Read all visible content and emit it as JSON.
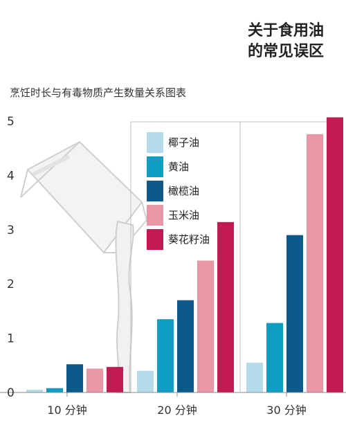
{
  "headline": {
    "line1": "关于食用油",
    "line2": "的常见误区"
  },
  "chart_data": {
    "type": "bar",
    "title": "烹饪时长与有毒物质产生数量关系图表",
    "categories": [
      "10 分钟",
      "20 分钟",
      "30 分钟"
    ],
    "yticks": [
      "0",
      "1",
      "2",
      "3",
      "4",
      "5"
    ],
    "ylim": [
      0,
      5.1
    ],
    "legend_position": "top-center",
    "series": [
      {
        "name": "椰子油",
        "color": "#b5dbea",
        "values": [
          0.05,
          0.4,
          0.55
        ]
      },
      {
        "name": "黄油",
        "color": "#0f9ec2",
        "values": [
          0.08,
          1.35,
          1.28
        ]
      },
      {
        "name": "橄榄油",
        "color": "#0d5a8a",
        "values": [
          0.52,
          1.7,
          2.9
        ]
      },
      {
        "name": "玉米油",
        "color": "#e898a4",
        "values": [
          0.44,
          2.43,
          4.76
        ]
      },
      {
        "name": "葵花籽油",
        "color": "#c21b51",
        "values": [
          0.47,
          3.14,
          5.07
        ]
      }
    ]
  }
}
